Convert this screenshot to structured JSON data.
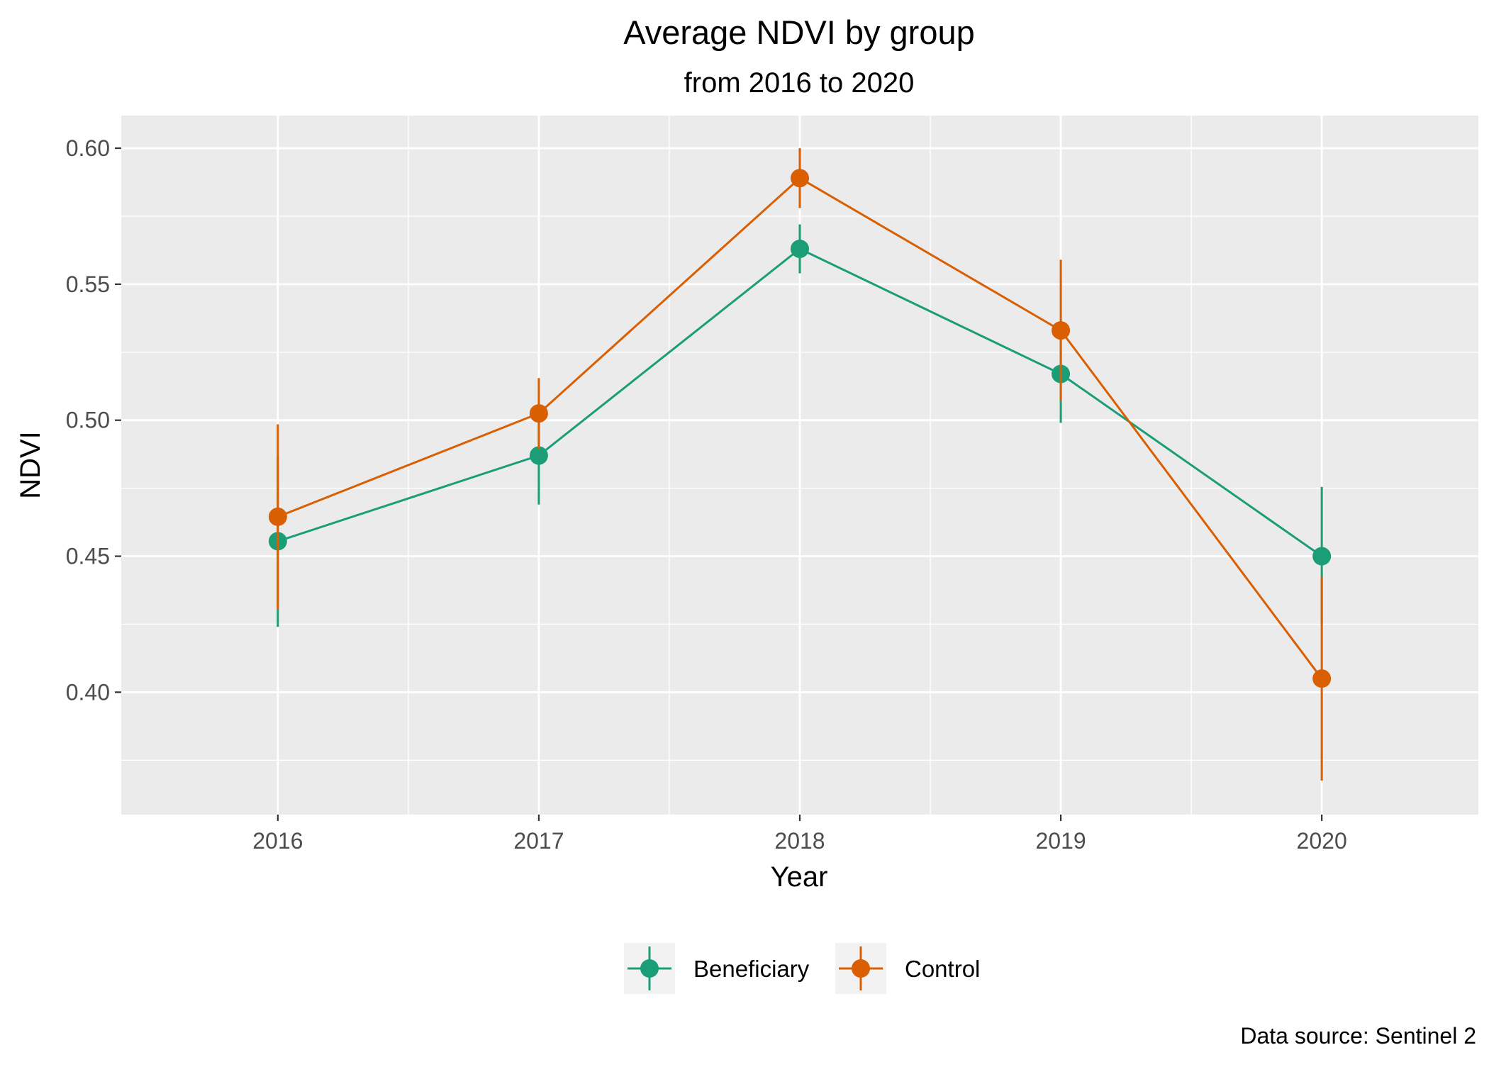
{
  "chart_data": {
    "type": "line",
    "title": "Average NDVI by group",
    "subtitle": "from 2016 to 2020",
    "xlabel": "Year",
    "ylabel": "NDVI",
    "caption": "Data source: Sentinel 2",
    "categories": [
      "2016",
      "2017",
      "2018",
      "2019",
      "2020"
    ],
    "ylim": [
      0.355,
      0.612
    ],
    "yticks": [
      0.4,
      0.45,
      0.5,
      0.55,
      0.6
    ],
    "ytick_labels": [
      "0.40",
      "0.45",
      "0.50",
      "0.55",
      "0.60"
    ],
    "grid": true,
    "legend_position": "bottom",
    "series": [
      {
        "name": "Beneficiary",
        "color": "#1b9e77",
        "values": [
          0.4555,
          0.487,
          0.563,
          0.517,
          0.45
        ],
        "error_low": [
          0.424,
          0.469,
          0.554,
          0.499,
          0.425
        ],
        "error_high": [
          0.487,
          0.505,
          0.572,
          0.535,
          0.4755
        ]
      },
      {
        "name": "Control",
        "color": "#d95f02",
        "values": [
          0.4645,
          0.5025,
          0.589,
          0.533,
          0.405
        ],
        "error_low": [
          0.4305,
          0.4895,
          0.578,
          0.507,
          0.3675
        ],
        "error_high": [
          0.4985,
          0.5155,
          0.6,
          0.559,
          0.4425
        ]
      }
    ]
  }
}
